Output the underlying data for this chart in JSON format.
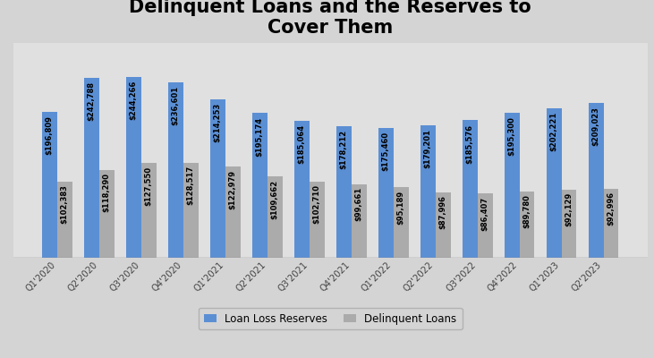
{
  "title": "Delinquent Loans and the Reserves to\nCover Them",
  "categories": [
    "Q1'2020",
    "Q2'2020",
    "Q3'2020",
    "Q4'2020",
    "Q1'2021",
    "Q2'2021",
    "Q3'2021",
    "Q4'2021",
    "Q1'2022",
    "Q2'2022",
    "Q3'2022",
    "Q4'2022",
    "Q1'2023",
    "Q2'2023"
  ],
  "loan_loss_reserves": [
    196809,
    242788,
    244266,
    236601,
    214253,
    195174,
    185064,
    178212,
    175460,
    179201,
    185576,
    195300,
    202221,
    209023
  ],
  "delinquent_loans": [
    102383,
    118290,
    127550,
    128517,
    122979,
    109662,
    102710,
    99661,
    95189,
    87996,
    86407,
    89780,
    92129,
    92996
  ],
  "bar_color_blue": "#5B8FD4",
  "bar_color_gray": "#ABABAB",
  "background_color": "#D4D4D4",
  "plot_bg_color": "#E0E0E0",
  "grid_color": "#FFFFFF",
  "title_fontsize": 15,
  "legend_labels": [
    "Loan Loss Reserves",
    "Delinquent Loans"
  ],
  "ylim": [
    0,
    290000
  ],
  "bar_width": 0.36,
  "annotation_fontsize": 6.0
}
